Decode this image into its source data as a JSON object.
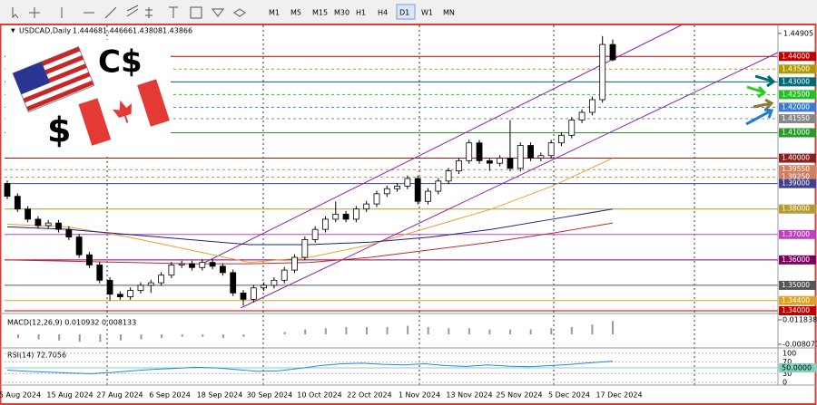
{
  "toolbar": {
    "timeframes": [
      "M1",
      "M5",
      "M15",
      "M30",
      "H1",
      "H4",
      "D1",
      "W1",
      "MN"
    ],
    "active": "D1"
  },
  "logo": {
    "currency1": "C$",
    "currency2": "$"
  },
  "chart_data": {
    "type": "candlestick",
    "symbol": "USDCAD,Daily",
    "ylim": [
      1.34,
      1.449
    ],
    "top_tick": {
      "value": 1.44905,
      "label": "1.44905"
    },
    "open": [
      1.39,
      1.385,
      1.38,
      1.376,
      1.3735,
      1.3745,
      1.372,
      1.369,
      1.362,
      1.358,
      1.352,
      1.3465,
      1.3455,
      1.348,
      1.35,
      1.351,
      1.354,
      1.358,
      1.3585,
      1.357,
      1.359,
      1.3575,
      1.355,
      1.347,
      1.3445,
      1.349,
      1.35,
      1.352,
      1.356,
      1.361,
      1.368,
      1.372,
      1.376,
      1.378,
      1.376,
      1.38,
      1.382,
      1.386,
      1.388,
      1.389,
      1.392,
      1.383,
      1.387,
      1.391,
      1.395,
      1.399,
      1.406,
      1.399,
      1.398,
      1.4,
      1.396,
      1.405,
      1.4,
      1.401,
      1.406,
      1.409,
      1.415,
      1.418,
      1.423,
      1.44468
    ],
    "high": [
      1.3912,
      1.3862,
      1.3812,
      1.3772,
      1.3757,
      1.3757,
      1.3732,
      1.3702,
      1.3632,
      1.3592,
      1.3532,
      1.3477,
      1.3492,
      1.3512,
      1.3522,
      1.3552,
      1.3592,
      1.3597,
      1.3597,
      1.3602,
      1.3602,
      1.3587,
      1.3562,
      1.3482,
      1.3502,
      1.3512,
      1.3532,
      1.3572,
      1.3622,
      1.3692,
      1.3732,
      1.3772,
      1.383,
      1.3792,
      1.3812,
      1.3832,
      1.3872,
      1.3892,
      1.3902,
      1.3932,
      1.3932,
      1.3882,
      1.3922,
      1.3962,
      1.4002,
      1.4072,
      1.4072,
      1.4002,
      1.4012,
      1.415,
      1.4062,
      1.4062,
      1.4022,
      1.4072,
      1.4102,
      1.4162,
      1.4192,
      1.4242,
      1.448,
      1.44666
    ],
    "low": [
      1.3838,
      1.3788,
      1.3748,
      1.3723,
      1.3723,
      1.3708,
      1.3678,
      1.3608,
      1.3568,
      1.3508,
      1.344,
      1.3443,
      1.3443,
      1.3468,
      1.347,
      1.3498,
      1.3528,
      1.3568,
      1.3558,
      1.3558,
      1.3563,
      1.3538,
      1.3458,
      1.342,
      1.3433,
      1.3478,
      1.3488,
      1.3508,
      1.3548,
      1.3598,
      1.3668,
      1.3708,
      1.3748,
      1.3748,
      1.3748,
      1.3788,
      1.3808,
      1.3848,
      1.3868,
      1.3878,
      1.3818,
      1.3818,
      1.3858,
      1.3898,
      1.3938,
      1.3978,
      1.3978,
      1.395,
      1.3968,
      1.3948,
      1.3948,
      1.3988,
      1.3988,
      1.3998,
      1.4048,
      1.4078,
      1.4138,
      1.4168,
      1.4218,
      1.43808
    ],
    "close": [
      1.385,
      1.38,
      1.376,
      1.3735,
      1.3745,
      1.372,
      1.369,
      1.362,
      1.358,
      1.352,
      1.3465,
      1.3455,
      1.348,
      1.35,
      1.351,
      1.354,
      1.358,
      1.3585,
      1.357,
      1.359,
      1.3575,
      1.355,
      1.347,
      1.3445,
      1.349,
      1.35,
      1.352,
      1.356,
      1.361,
      1.368,
      1.372,
      1.376,
      1.378,
      1.376,
      1.38,
      1.382,
      1.386,
      1.388,
      1.389,
      1.392,
      1.383,
      1.387,
      1.391,
      1.395,
      1.399,
      1.406,
      1.399,
      1.398,
      1.4,
      1.396,
      1.405,
      1.4,
      1.401,
      1.406,
      1.409,
      1.415,
      1.418,
      1.423,
      1.4447,
      1.43866
    ],
    "up_color": "#ffffff",
    "down_color": "#000000",
    "moving_averages": [
      {
        "color": "#e8a030",
        "values": [
          1.374,
          1.373,
          1.369,
          1.364,
          1.359,
          1.361,
          1.366,
          1.373,
          1.38,
          1.389,
          1.4
        ]
      },
      {
        "color": "#1a237e",
        "values": [
          1.373,
          1.372,
          1.37,
          1.368,
          1.366,
          1.366,
          1.367,
          1.369,
          1.372,
          1.376,
          1.38
        ]
      },
      {
        "color": "#c62828",
        "values": [
          1.36,
          1.3595,
          1.359,
          1.3585,
          1.3585,
          1.359,
          1.361,
          1.364,
          1.367,
          1.3705,
          1.3745
        ]
      }
    ],
    "levels": [
      {
        "value": 1.44,
        "label": "1.44000",
        "color": "#c00000",
        "dashed": false
      },
      {
        "value": 1.435,
        "label": "1.43500",
        "color": "#b09a00",
        "dashed": true
      },
      {
        "value": 1.43,
        "label": "1.43000",
        "color": "#006a78",
        "dashed": false
      },
      {
        "value": 1.425,
        "label": "1.42500",
        "color": "#22c022",
        "dashed": true
      },
      {
        "value": 1.42,
        "label": "1.42000",
        "color": "#3a7bd5",
        "dashed": true
      },
      {
        "value": 1.4155,
        "label": "1.41550",
        "color": "#888888",
        "dashed": true
      },
      {
        "value": 1.41,
        "label": "1.41000",
        "color": "#2a9a2a",
        "dashed": false
      },
      {
        "value": 1.4,
        "label": "1.40000",
        "color": "#8b2020",
        "dashed": false
      },
      {
        "value": 1.3955,
        "label": "1.39550",
        "color": "#d08060",
        "dashed": true
      },
      {
        "value": 1.3925,
        "label": "1.39250",
        "color": "#d08060",
        "dashed": true
      },
      {
        "value": 1.39,
        "label": "1.39000",
        "color": "#404090",
        "dashed": false
      },
      {
        "value": 1.38,
        "label": "1.38000",
        "color": "#b89a30",
        "dashed": false
      },
      {
        "value": 1.37,
        "label": "1.37000",
        "color": "#c040c0",
        "dashed": false
      },
      {
        "value": 1.36,
        "label": "1.36000",
        "color": "#800060",
        "dashed": false
      },
      {
        "value": 1.35,
        "label": "1.35000",
        "color": "#555555",
        "dashed": false
      },
      {
        "value": 1.344,
        "label": "1.34400",
        "color": "#e0a020",
        "dashed": false
      },
      {
        "value": 1.34,
        "label": "1.34000",
        "color": "#c00000",
        "dashed": false
      }
    ],
    "dates": [
      "5 Aug 2024",
      "15 Aug 2024",
      "27 Aug 2024",
      "6 Sep 2024",
      "18 Sep 2024",
      "30 Sep 2024",
      "10 Oct 2024",
      "22 Oct 2024",
      "1 Nov 2024",
      "13 Nov 2024",
      "25 Nov 2024",
      "5 Dec 2024",
      "17 Dec 2024"
    ],
    "macd": {
      "title": "MACD(12,26,9) 0.010932 0.008133",
      "ylim": [
        -0.008077,
        0.011838
      ],
      "yticks": [
        {
          "value": 0.011838,
          "label": "0.011838"
        },
        {
          "value": -0.008077,
          "label": "-0.008077"
        }
      ],
      "values": [
        -0.003,
        -0.004,
        -0.005,
        -0.006,
        -0.006,
        -0.005,
        -0.004,
        -0.003,
        -0.002,
        -0.002,
        -0.003,
        -0.002,
        0.0,
        0.002,
        0.004,
        0.005,
        0.006,
        0.006,
        0.006,
        0.007,
        0.006,
        0.005,
        0.005,
        0.004,
        0.004,
        0.004,
        0.005,
        0.006,
        0.008,
        0.0109
      ]
    },
    "rsi": {
      "title": "RSI(14) 72.7056",
      "ylim": [
        0,
        100
      ],
      "yticks": [
        100,
        70,
        30,
        0
      ],
      "level": {
        "value": 50,
        "label": "50.0000"
      },
      "color": "#1e88e5",
      "values": [
        42,
        38,
        35,
        32,
        30,
        34,
        40,
        45,
        48,
        52,
        50,
        44,
        38,
        40,
        48,
        58,
        64,
        66,
        62,
        60,
        64,
        58,
        55,
        60,
        56,
        54,
        58,
        62,
        68,
        72.7056
      ]
    }
  }
}
